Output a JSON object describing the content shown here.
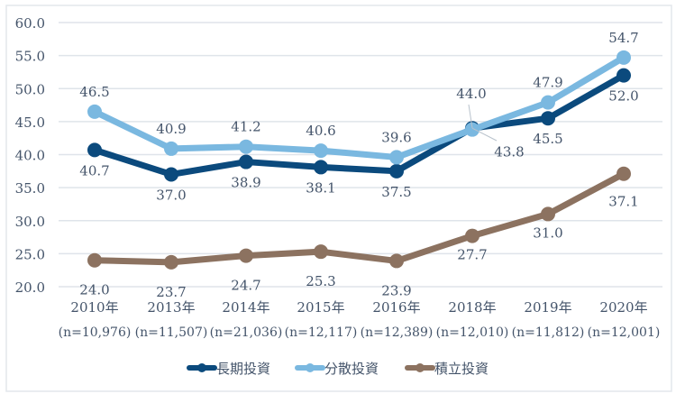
{
  "chart_data": {
    "type": "line",
    "title": "",
    "xlabel": "",
    "ylabel": "",
    "ylim": [
      20,
      60
    ],
    "yticks": [
      "20.0",
      "25.0",
      "30.0",
      "35.0",
      "40.0",
      "45.0",
      "50.0",
      "55.0",
      "60.0"
    ],
    "grid": true,
    "legend_placement": "bottom",
    "categories": [
      "2010年",
      "2013年",
      "2014年",
      "2015年",
      "2016年",
      "2018年",
      "2019年",
      "2020年"
    ],
    "sample_sizes": [
      "(n=10,976)",
      "(n=11,507)",
      "(n=21,036)",
      "(n=12,117)",
      "(n=12,389)",
      "(n=12,010)",
      "(n=11,812)",
      "(n=12,001)"
    ],
    "series": [
      {
        "name": "長期投資",
        "color": "#0b4a7d",
        "values": [
          40.7,
          37.0,
          38.9,
          38.1,
          37.5,
          44.0,
          45.5,
          52.0
        ],
        "labels": [
          "40.7",
          "37.0",
          "38.9",
          "38.1",
          "37.5",
          "44.0",
          "45.5",
          "52.0"
        ]
      },
      {
        "name": "分散投資",
        "color": "#7ab8e0",
        "values": [
          46.5,
          40.9,
          41.2,
          40.6,
          39.6,
          43.8,
          47.9,
          54.7
        ],
        "labels": [
          "46.5",
          "40.9",
          "41.2",
          "40.6",
          "39.6",
          "43.8",
          "47.9",
          "54.7"
        ]
      },
      {
        "name": "積立投資",
        "color": "#8c7260",
        "values": [
          24.0,
          23.7,
          24.7,
          25.3,
          23.9,
          27.7,
          31.0,
          37.1
        ],
        "labels": [
          "24.0",
          "23.7",
          "24.7",
          "25.3",
          "23.9",
          "27.7",
          "31.0",
          "37.1"
        ]
      }
    ]
  }
}
